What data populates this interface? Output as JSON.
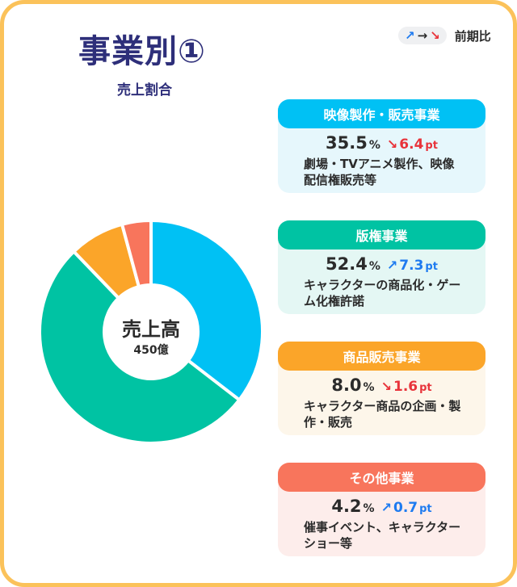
{
  "title": "事業別①",
  "subtitle": "売上割合",
  "legend": {
    "label": "前期比",
    "up_arrow": "↗",
    "right_arrow": "→",
    "down_arrow": "↘"
  },
  "donut_center": {
    "title": "売上高",
    "value": "450億"
  },
  "segments": [
    {
      "name": "映像製作・販売事業",
      "percent": "35.5",
      "unit": "%",
      "change_arrow": "↘",
      "change": "6.4",
      "change_unit": "pt",
      "direction": "down",
      "description": "劇場・TVアニメ製作、映像配信権販売等",
      "color": "#00C1F4",
      "light_color": "#E6F7FC"
    },
    {
      "name": "版権事業",
      "percent": "52.4",
      "unit": "%",
      "change_arrow": "↗",
      "change": "7.3",
      "change_unit": "pt",
      "direction": "up",
      "description": "キャラクターの商品化・ゲーム化権許諾",
      "color": "#00C3A3",
      "light_color": "#E4F7F4"
    },
    {
      "name": "商品販売事業",
      "percent": "8.0",
      "unit": "%",
      "change_arrow": "↘",
      "change": "1.6",
      "change_unit": "pt",
      "direction": "down",
      "description": "キャラクター商品の企画・製作・販売",
      "color": "#FBA529",
      "light_color": "#FDF6EA"
    },
    {
      "name": "その他事業",
      "percent": "4.2",
      "unit": "%",
      "change_arrow": "↗",
      "change": "0.7",
      "change_unit": "pt",
      "direction": "up",
      "description": "催事イベント、キャラクターショー等",
      "color": "#F8755C",
      "light_color": "#FDEDEB"
    }
  ],
  "chart_data": {
    "type": "pie",
    "title": "売上割合",
    "categories": [
      "映像製作・販売事業",
      "版権事業",
      "商品販売事業",
      "その他事業"
    ],
    "values": [
      35.5,
      52.4,
      8.0,
      4.2
    ],
    "unit": "%",
    "center_label": "売上高",
    "center_value": "450億",
    "change_vs_previous_period": [
      {
        "category": "映像製作・販売事業",
        "value": -6.4,
        "unit": "pt"
      },
      {
        "category": "版権事業",
        "value": 7.3,
        "unit": "pt"
      },
      {
        "category": "商品販売事業",
        "value": -1.6,
        "unit": "pt"
      },
      {
        "category": "その他事業",
        "value": 0.7,
        "unit": "pt"
      }
    ],
    "colors": [
      "#00C1F4",
      "#00C3A3",
      "#FBA529",
      "#F8755C"
    ]
  }
}
